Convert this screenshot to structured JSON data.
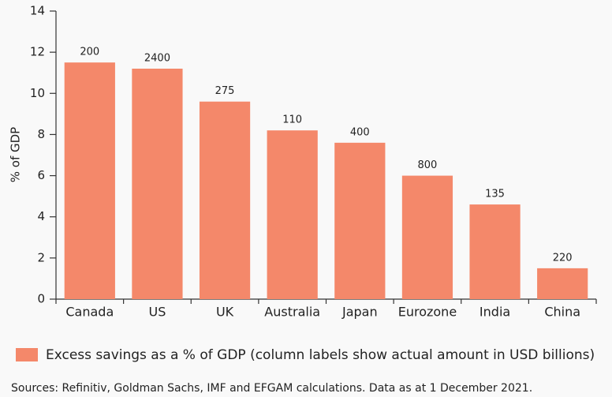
{
  "chart_data": {
    "type": "bar",
    "y_label": "% of GDP",
    "categories": [
      "Canada",
      "US",
      "UK",
      "Australia",
      "Japan",
      "Eurozone",
      "India",
      "China"
    ],
    "series": [
      {
        "name": "Excess savings as a % of GDP (column labels show actual amount in USD billions)",
        "color": "#f4886a",
        "values": [
          11.5,
          11.2,
          9.6,
          8.2,
          7.6,
          6.0,
          4.6,
          1.5
        ]
      }
    ],
    "column_labels": [
      200,
      2400,
      275,
      110,
      400,
      800,
      135,
      220
    ],
    "ylim": [
      0,
      14
    ],
    "yticks": [
      0,
      2,
      4,
      6,
      8,
      10,
      12,
      14
    ],
    "source": "Sources: Refinitiv, Goldman Sachs, IMF and EFGAM calculations. Data as at 1 December 2021."
  }
}
